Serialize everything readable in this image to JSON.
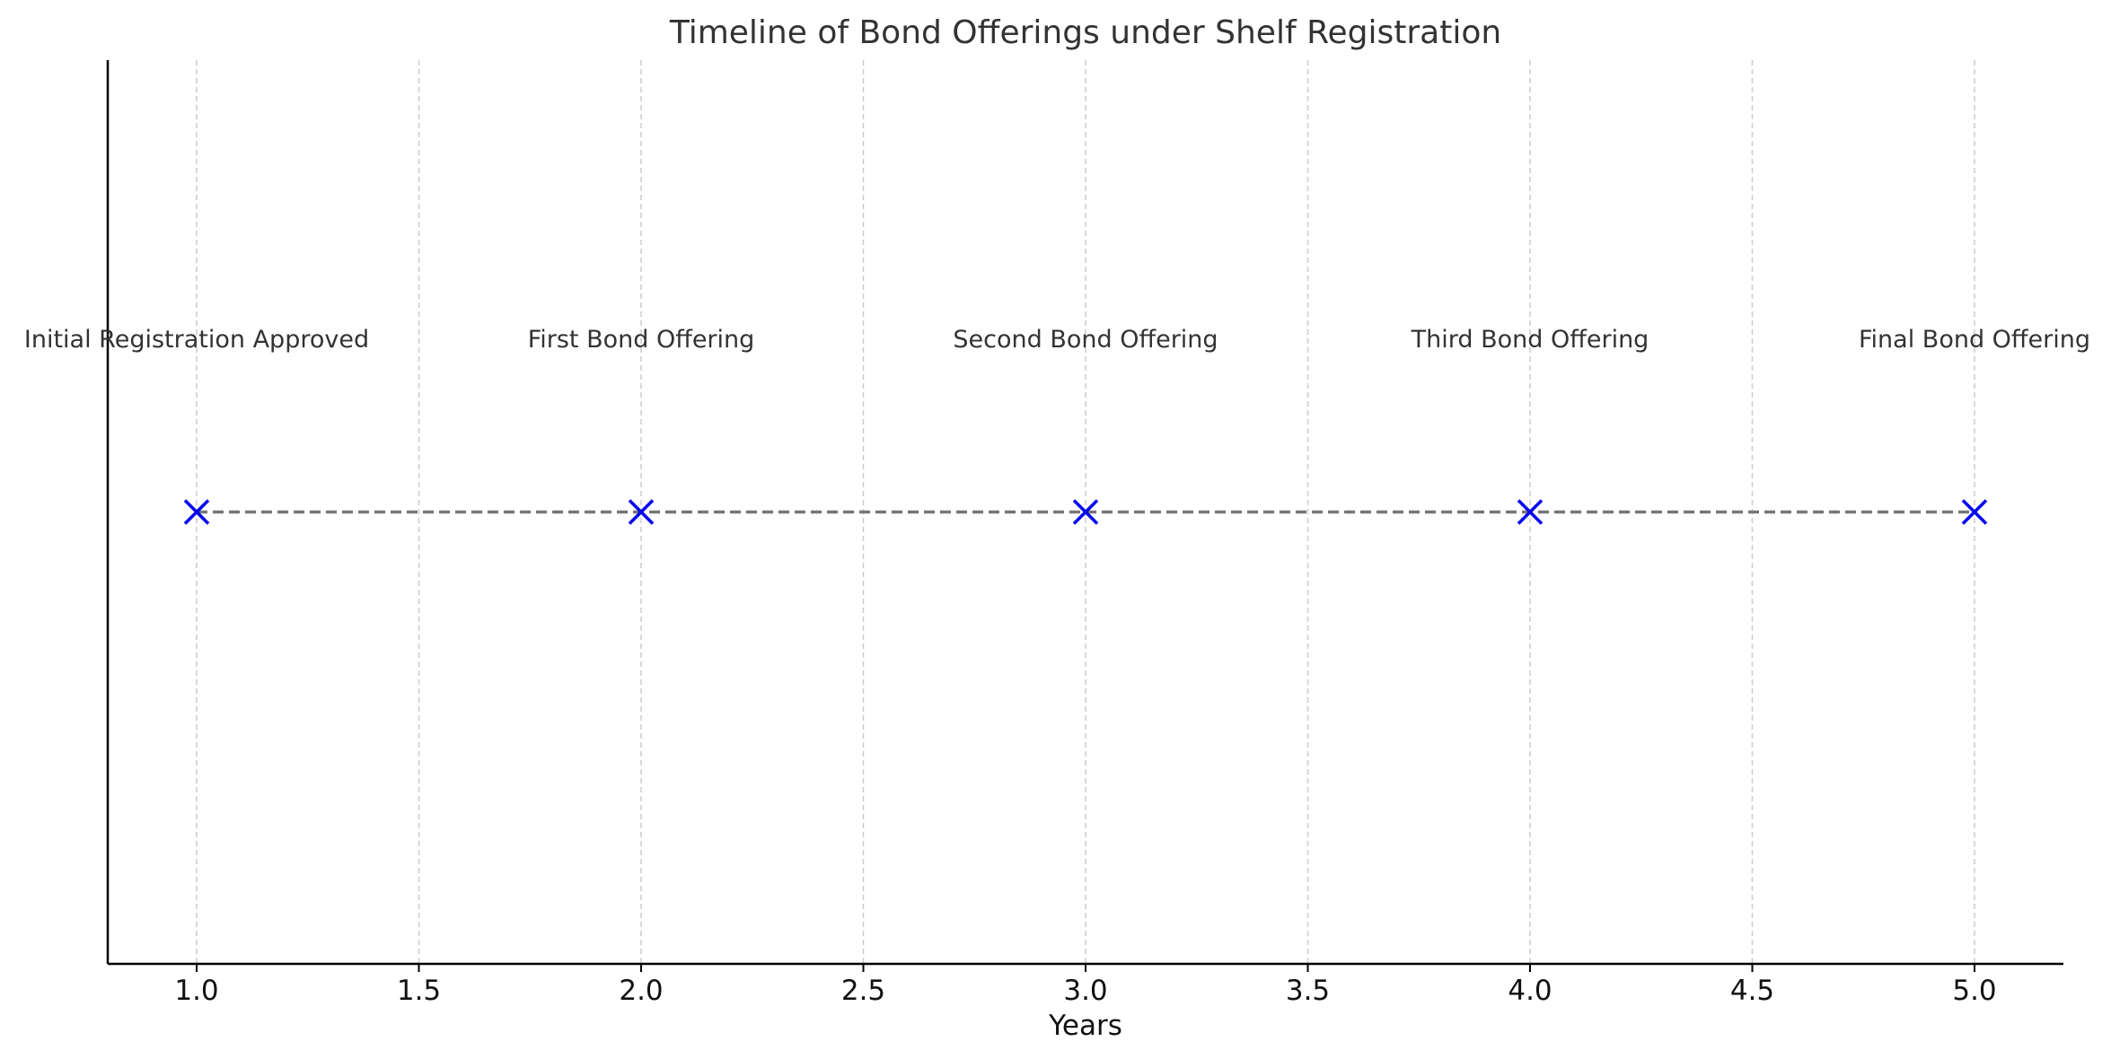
{
  "chart_data": {
    "type": "scatter",
    "title": "Timeline of Bond Offerings under Shelf Registration",
    "xlabel": "Years",
    "ylabel": "",
    "xlim": [
      0.8,
      5.2
    ],
    "ylim": [
      0,
      1
    ],
    "x_ticks": [
      "1.0",
      "1.5",
      "2.0",
      "2.5",
      "3.0",
      "3.5",
      "4.0",
      "4.5",
      "5.0"
    ],
    "x_tick_values": [
      1.0,
      1.5,
      2.0,
      2.5,
      3.0,
      3.5,
      4.0,
      4.5,
      5.0
    ],
    "grid": "x-only, dashed",
    "marker": "x",
    "marker_color": "#0000ee",
    "line_color": "#777777",
    "line_style": "dashed",
    "points": [
      {
        "x": 1,
        "y": 0.5,
        "label": "Initial Registration Approved"
      },
      {
        "x": 2,
        "y": 0.5,
        "label": "First Bond Offering"
      },
      {
        "x": 3,
        "y": 0.5,
        "label": "Second Bond Offering"
      },
      {
        "x": 4,
        "y": 0.5,
        "label": "Third Bond Offering"
      },
      {
        "x": 5,
        "y": 0.5,
        "label": "Final Bond Offering"
      }
    ]
  }
}
